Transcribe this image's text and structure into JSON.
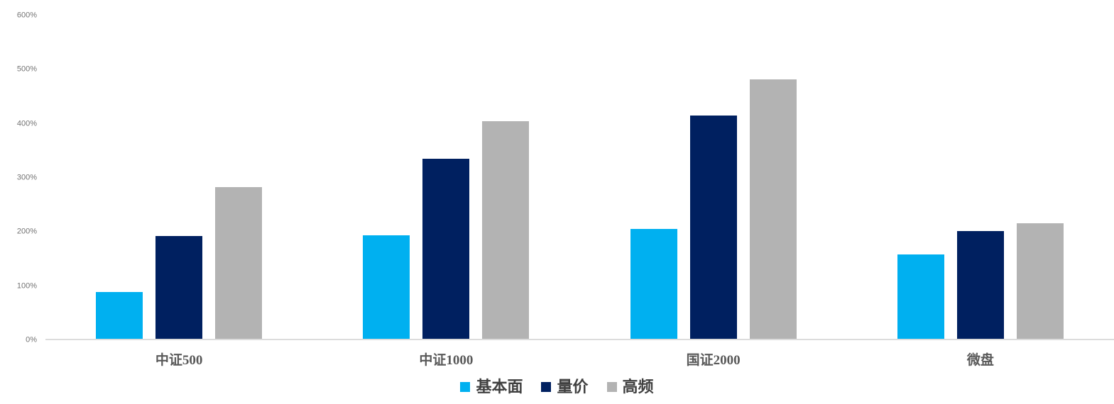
{
  "chart_data": {
    "type": "bar",
    "title": "",
    "xlabel": "",
    "ylabel": "",
    "categories": [
      "中证500",
      "中证1000",
      "国证2000",
      "微盘"
    ],
    "category_keys": [
      "csi500",
      "csi1000",
      "gz2000",
      "micro-cap"
    ],
    "series": [
      {
        "key": "fundamental",
        "name": "基本面",
        "color": "#00B0F0",
        "values": [
          87,
          192,
          204,
          157
        ]
      },
      {
        "key": "price-volume",
        "name": "量价",
        "color": "#002060",
        "values": [
          191,
          334,
          414,
          200
        ]
      },
      {
        "key": "high-freq",
        "name": "高频",
        "color": "#B3B3B3",
        "values": [
          282,
          404,
          481,
          215
        ]
      }
    ],
    "value_unit": "%",
    "ylim": [
      0,
      600
    ],
    "yticks": [
      {
        "value": 0,
        "label": "0%"
      },
      {
        "value": 100,
        "label": "100%"
      },
      {
        "value": 200,
        "label": "200%"
      },
      {
        "value": 300,
        "label": "300%"
      },
      {
        "value": 400,
        "label": "400%"
      },
      {
        "value": 500,
        "label": "500%"
      },
      {
        "value": 600,
        "label": "600%"
      }
    ],
    "grid": false,
    "legend_position": "bottom",
    "colors": {
      "axis_line": "#dcdcdc",
      "tick_label": "#737373",
      "category_label": "#595959",
      "legend_label": "#404040",
      "background": "#ffffff"
    }
  }
}
